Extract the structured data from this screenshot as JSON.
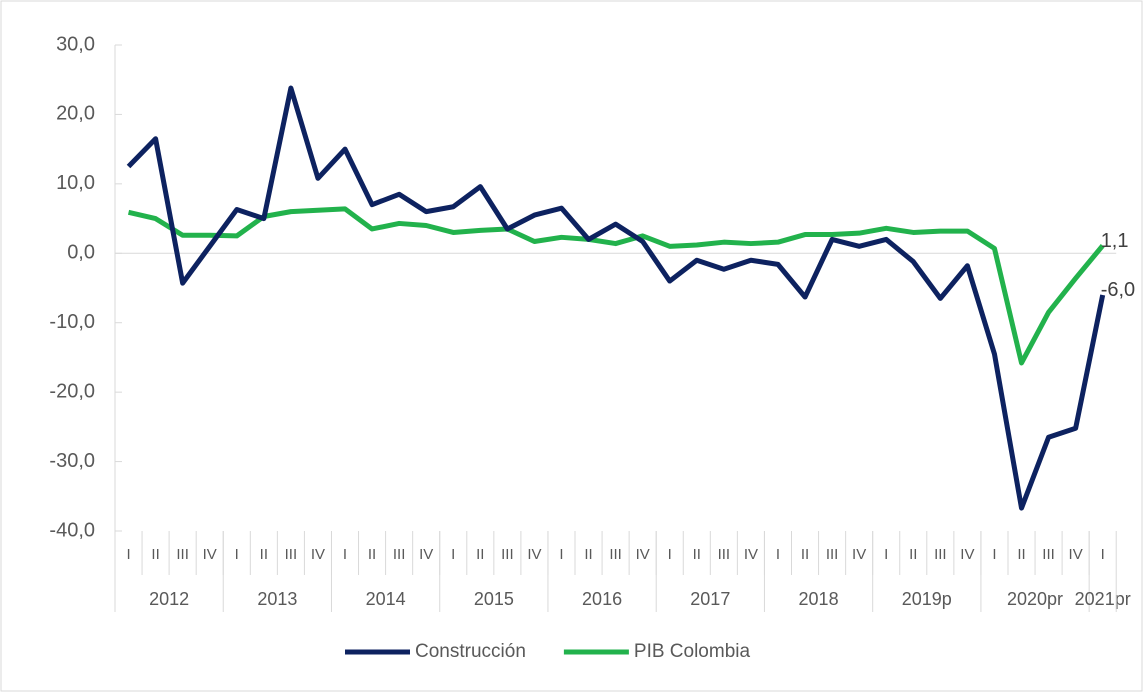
{
  "chart_data": {
    "type": "line",
    "categories": [
      "I",
      "II",
      "III",
      "IV",
      "I",
      "II",
      "III",
      "IV",
      "I",
      "II",
      "III",
      "IV",
      "I",
      "II",
      "III",
      "IV",
      "I",
      "II",
      "III",
      "IV",
      "I",
      "II",
      "III",
      "IV",
      "I",
      "II",
      "III",
      "IV",
      "I",
      "II",
      "III",
      "IV",
      "I",
      "II",
      "III",
      "IV",
      "I"
    ],
    "x_groups": [
      {
        "label": "2012",
        "size": 4
      },
      {
        "label": "2013",
        "size": 4
      },
      {
        "label": "2014",
        "size": 4
      },
      {
        "label": "2015",
        "size": 4
      },
      {
        "label": "2016",
        "size": 4
      },
      {
        "label": "2017",
        "size": 4
      },
      {
        "label": "2018",
        "size": 4
      },
      {
        "label": "2019p",
        "size": 4
      },
      {
        "label": "2020pr",
        "size": 4
      },
      {
        "label": "2021pr",
        "size": 1
      }
    ],
    "series": [
      {
        "name": "Construcción",
        "color": "#0d2260",
        "values": [
          12.5,
          16.5,
          -4.3,
          1.0,
          6.3,
          5.0,
          23.8,
          10.8,
          15.0,
          7.0,
          8.5,
          6.0,
          6.7,
          9.6,
          3.5,
          5.5,
          6.5,
          2.0,
          4.2,
          1.7,
          -4.0,
          -1.0,
          -2.3,
          -1.0,
          -1.6,
          -6.3,
          2.0,
          1.0,
          2.0,
          -1.2,
          -6.5,
          -1.8,
          -14.5,
          -36.7,
          -26.5,
          -25.2,
          -6.0
        ],
        "value_labels": [
          null,
          null,
          null,
          null,
          null,
          null,
          null,
          null,
          null,
          null,
          null,
          null,
          null,
          null,
          null,
          null,
          null,
          null,
          null,
          null,
          null,
          null,
          null,
          null,
          null,
          null,
          null,
          null,
          null,
          null,
          null,
          null,
          null,
          null,
          null,
          null,
          "-6,0"
        ]
      },
      {
        "name": "PIB Colombia",
        "color": "#22b24c",
        "values": [
          5.9,
          5.0,
          2.6,
          2.6,
          2.5,
          5.3,
          6.0,
          6.2,
          6.4,
          3.5,
          4.3,
          4.0,
          3.0,
          3.3,
          3.5,
          1.7,
          2.3,
          2.0,
          1.4,
          2.5,
          1.0,
          1.2,
          1.6,
          1.4,
          1.6,
          2.7,
          2.7,
          2.9,
          3.6,
          3.0,
          3.2,
          3.2,
          0.7,
          -15.8,
          -8.5,
          -3.6,
          1.1
        ],
        "value_labels": [
          null,
          null,
          null,
          null,
          null,
          null,
          null,
          null,
          null,
          null,
          null,
          null,
          null,
          null,
          null,
          null,
          null,
          null,
          null,
          null,
          null,
          null,
          null,
          null,
          null,
          null,
          null,
          null,
          null,
          null,
          null,
          null,
          null,
          null,
          null,
          null,
          "1,1"
        ]
      }
    ],
    "ylim": [
      -40,
      30
    ],
    "yticks": [
      {
        "value": -40,
        "label": "-40,0"
      },
      {
        "value": -30,
        "label": "-30,0"
      },
      {
        "value": -20,
        "label": "-20,0"
      },
      {
        "value": -10,
        "label": "-10,0"
      },
      {
        "value": 0,
        "label": "0,0"
      },
      {
        "value": 10,
        "label": "10,0"
      },
      {
        "value": 20,
        "label": "20,0"
      },
      {
        "value": 30,
        "label": "30,0"
      }
    ],
    "legend": "bottom"
  }
}
